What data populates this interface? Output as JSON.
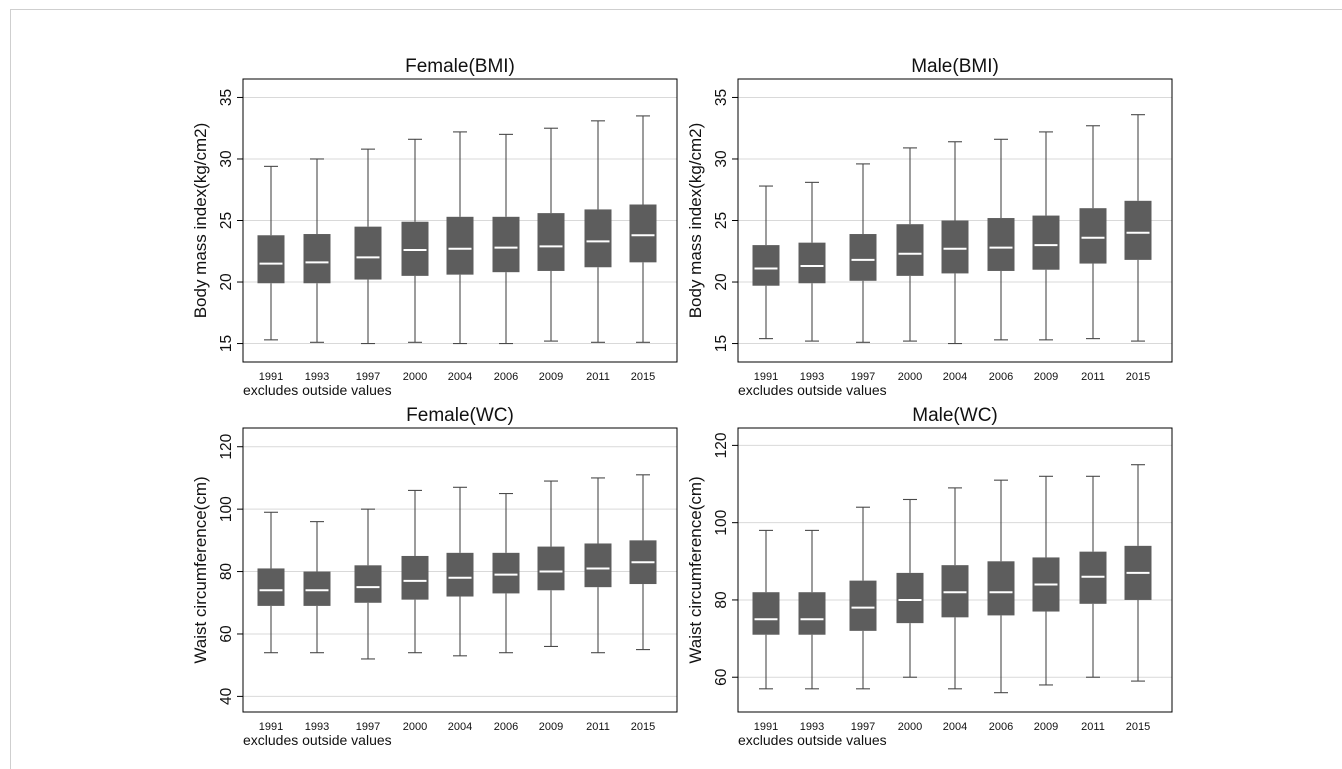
{
  "chart_data": [
    {
      "type": "box",
      "title": "Female(BMI)",
      "ylabel": "Body mass index(kg/cm2)",
      "xlabel": "",
      "note": "excludes outside values",
      "categories": [
        "1991",
        "1993",
        "1997",
        "2000",
        "2004",
        "2006",
        "2009",
        "2011",
        "2015"
      ],
      "ylim": [
        13.5,
        36.5
      ],
      "yticks": [
        15,
        20,
        25,
        30,
        35
      ],
      "grid": true,
      "boxes": [
        {
          "min": 15.3,
          "q1": 19.9,
          "median": 21.5,
          "q3": 23.8,
          "max": 29.4
        },
        {
          "min": 15.1,
          "q1": 19.9,
          "median": 21.6,
          "q3": 23.9,
          "max": 30.0
        },
        {
          "min": 15.0,
          "q1": 20.2,
          "median": 22.0,
          "q3": 24.5,
          "max": 30.8
        },
        {
          "min": 15.1,
          "q1": 20.5,
          "median": 22.6,
          "q3": 24.9,
          "max": 31.6
        },
        {
          "min": 15.0,
          "q1": 20.6,
          "median": 22.7,
          "q3": 25.3,
          "max": 32.2
        },
        {
          "min": 15.0,
          "q1": 20.8,
          "median": 22.8,
          "q3": 25.3,
          "max": 32.0
        },
        {
          "min": 15.2,
          "q1": 20.9,
          "median": 22.9,
          "q3": 25.6,
          "max": 32.5
        },
        {
          "min": 15.1,
          "q1": 21.2,
          "median": 23.3,
          "q3": 25.9,
          "max": 33.1
        },
        {
          "min": 15.1,
          "q1": 21.6,
          "median": 23.8,
          "q3": 26.3,
          "max": 33.5
        }
      ]
    },
    {
      "type": "box",
      "title": "Male(BMI)",
      "ylabel": "Body mass index(kg/cm2)",
      "xlabel": "",
      "note": "excludes outside values",
      "categories": [
        "1991",
        "1993",
        "1997",
        "2000",
        "2004",
        "2006",
        "2009",
        "2011",
        "2015"
      ],
      "ylim": [
        13.5,
        36.5
      ],
      "yticks": [
        15,
        20,
        25,
        30,
        35
      ],
      "grid": true,
      "boxes": [
        {
          "min": 15.4,
          "q1": 19.7,
          "median": 21.1,
          "q3": 23.0,
          "max": 27.8
        },
        {
          "min": 15.2,
          "q1": 19.9,
          "median": 21.3,
          "q3": 23.2,
          "max": 28.1
        },
        {
          "min": 15.1,
          "q1": 20.1,
          "median": 21.8,
          "q3": 23.9,
          "max": 29.6
        },
        {
          "min": 15.2,
          "q1": 20.5,
          "median": 22.3,
          "q3": 24.7,
          "max": 30.9
        },
        {
          "min": 15.0,
          "q1": 20.7,
          "median": 22.7,
          "q3": 25.0,
          "max": 31.4
        },
        {
          "min": 15.3,
          "q1": 20.9,
          "median": 22.8,
          "q3": 25.2,
          "max": 31.6
        },
        {
          "min": 15.3,
          "q1": 21.0,
          "median": 23.0,
          "q3": 25.4,
          "max": 32.2
        },
        {
          "min": 15.4,
          "q1": 21.5,
          "median": 23.6,
          "q3": 26.0,
          "max": 32.7
        },
        {
          "min": 15.2,
          "q1": 21.8,
          "median": 24.0,
          "q3": 26.6,
          "max": 33.6
        }
      ]
    },
    {
      "type": "box",
      "title": "Female(WC)",
      "ylabel": "Waist circumference(cm)",
      "xlabel": "",
      "note": "excludes outside values",
      "categories": [
        "1991",
        "1993",
        "1997",
        "2000",
        "2004",
        "2006",
        "2009",
        "2011",
        "2015"
      ],
      "ylim": [
        35,
        126
      ],
      "yticks": [
        40,
        60,
        80,
        100,
        120
      ],
      "grid": true,
      "boxes": [
        {
          "min": 54,
          "q1": 69,
          "median": 74,
          "q3": 81,
          "max": 99
        },
        {
          "min": 54,
          "q1": 69,
          "median": 74,
          "q3": 80,
          "max": 96
        },
        {
          "min": 52,
          "q1": 70,
          "median": 75,
          "q3": 82,
          "max": 100
        },
        {
          "min": 54,
          "q1": 71,
          "median": 77,
          "q3": 85,
          "max": 106
        },
        {
          "min": 53,
          "q1": 72,
          "median": 78,
          "q3": 86,
          "max": 107
        },
        {
          "min": 54,
          "q1": 73,
          "median": 79,
          "q3": 86,
          "max": 105
        },
        {
          "min": 56,
          "q1": 74,
          "median": 80,
          "q3": 88,
          "max": 109
        },
        {
          "min": 54,
          "q1": 75,
          "median": 81,
          "q3": 89,
          "max": 110
        },
        {
          "min": 55,
          "q1": 76,
          "median": 83,
          "q3": 90,
          "max": 111
        }
      ]
    },
    {
      "type": "box",
      "title": "Male(WC)",
      "ylabel": "Waist circumference(cm)",
      "xlabel": "",
      "note": "excludes outside values",
      "categories": [
        "1991",
        "1993",
        "1997",
        "2000",
        "2004",
        "2006",
        "2009",
        "2011",
        "2015"
      ],
      "ylim": [
        51,
        124.5
      ],
      "yticks": [
        60,
        80,
        100,
        120
      ],
      "grid": true,
      "boxes": [
        {
          "min": 57,
          "q1": 71,
          "median": 75,
          "q3": 82,
          "max": 98
        },
        {
          "min": 57,
          "q1": 71,
          "median": 75,
          "q3": 82,
          "max": 98
        },
        {
          "min": 57,
          "q1": 72,
          "median": 78,
          "q3": 85,
          "max": 104
        },
        {
          "min": 60,
          "q1": 74,
          "median": 80,
          "q3": 87,
          "max": 106
        },
        {
          "min": 57,
          "q1": 75.5,
          "median": 82,
          "q3": 89,
          "max": 109
        },
        {
          "min": 56,
          "q1": 76,
          "median": 82,
          "q3": 90,
          "max": 111
        },
        {
          "min": 58,
          "q1": 77,
          "median": 84,
          "q3": 91,
          "max": 112
        },
        {
          "min": 60,
          "q1": 79,
          "median": 86,
          "q3": 92.5,
          "max": 112
        },
        {
          "min": 59,
          "q1": 80,
          "median": 87,
          "q3": 94,
          "max": 115
        }
      ]
    }
  ],
  "colors": {
    "box_fill": "#5d5d5d",
    "median_line": "#ffffff",
    "whisker": "#4a4a4a",
    "gridline": "#d9d9d9",
    "axis": "#000000"
  }
}
